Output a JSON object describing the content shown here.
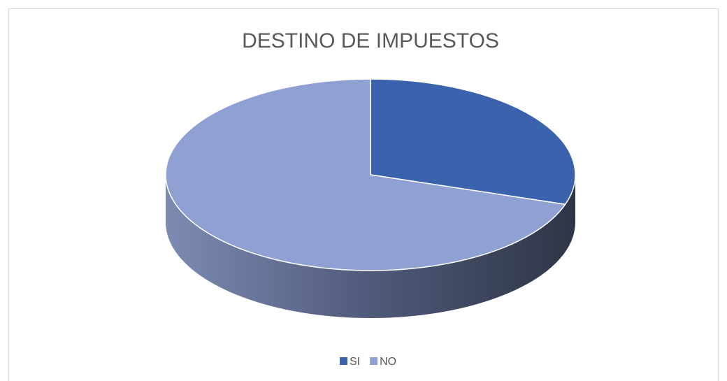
{
  "chart_data": {
    "type": "pie",
    "title": "DESTINO DE IMPUESTOS",
    "categories": [
      "SI",
      "NO"
    ],
    "values": [
      30,
      70
    ],
    "colors": [
      "#3a62ad",
      "#8fa1d3"
    ],
    "legend": "bottom"
  }
}
